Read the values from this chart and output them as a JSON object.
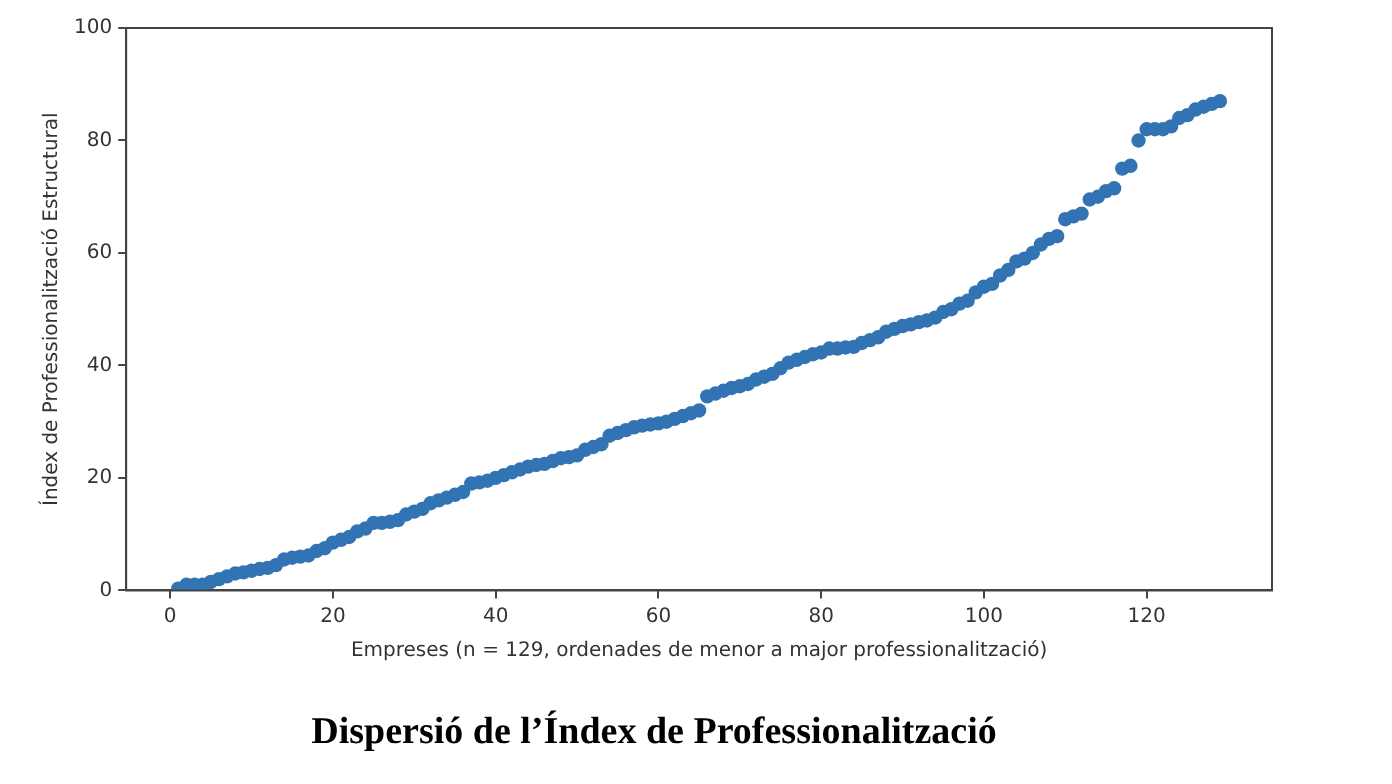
{
  "chart_data": {
    "type": "scatter",
    "title": "Dispersió de l’Índex de Professionalització",
    "xlabel": "Empreses (n = 129, ordenades de menor a major professionalització)",
    "ylabel": "Índex de Professionalització Estructural",
    "x": [
      1,
      2,
      3,
      4,
      5,
      6,
      7,
      8,
      9,
      10,
      11,
      12,
      13,
      14,
      15,
      16,
      17,
      18,
      19,
      20,
      21,
      22,
      23,
      24,
      25,
      26,
      27,
      28,
      29,
      30,
      31,
      32,
      33,
      34,
      35,
      36,
      37,
      38,
      39,
      40,
      41,
      42,
      43,
      44,
      45,
      46,
      47,
      48,
      49,
      50,
      51,
      52,
      53,
      54,
      55,
      56,
      57,
      58,
      59,
      60,
      61,
      62,
      63,
      64,
      65,
      66,
      67,
      68,
      69,
      70,
      71,
      72,
      73,
      74,
      75,
      76,
      77,
      78,
      79,
      80,
      81,
      82,
      83,
      84,
      85,
      86,
      87,
      88,
      89,
      90,
      91,
      92,
      93,
      94,
      95,
      96,
      97,
      98,
      99,
      100,
      101,
      102,
      103,
      104,
      105,
      106,
      107,
      108,
      109,
      110,
      111,
      112,
      113,
      114,
      115,
      116,
      117,
      118,
      119,
      120,
      121,
      122,
      123,
      124,
      125,
      126,
      127,
      128,
      129
    ],
    "series": [
      {
        "color": "#3274b3",
        "values": [
          0.3,
          1,
          1,
          1,
          1.5,
          2,
          2.5,
          3,
          3.2,
          3.5,
          3.8,
          4,
          4.5,
          5.5,
          5.8,
          6,
          6.2,
          7,
          7.5,
          8.5,
          9,
          9.5,
          10.5,
          11,
          12,
          12,
          12.2,
          12.5,
          13.5,
          14,
          14.5,
          15.5,
          16,
          16.5,
          17,
          17.5,
          19,
          19.2,
          19.5,
          20,
          20.5,
          21,
          21.5,
          22,
          22.3,
          22.5,
          23,
          23.5,
          23.7,
          24,
          25,
          25.5,
          26,
          27.5,
          28,
          28.5,
          29,
          29.3,
          29.5,
          29.7,
          30,
          30.5,
          31,
          31.5,
          32,
          34.5,
          35,
          35.5,
          36,
          36.3,
          36.7,
          37.5,
          38,
          38.5,
          39.5,
          40.5,
          41,
          41.5,
          42,
          42.3,
          43,
          43,
          43.2,
          43.3,
          44,
          44.5,
          45,
          46,
          46.5,
          47,
          47.3,
          47.7,
          48,
          48.5,
          49.5,
          50,
          51,
          51.5,
          53,
          54,
          54.5,
          56,
          57,
          58.5,
          59,
          60,
          61.5,
          62.5,
          63,
          66,
          66.5,
          67,
          69.5,
          70,
          71,
          71.5,
          75,
          75.5,
          80,
          82,
          82,
          82,
          82.5,
          84,
          84.5,
          85.5,
          86,
          86.5,
          87
        ]
      }
    ],
    "xlim": [
      -5.4,
      135.4
    ],
    "xticks": [
      0,
      20,
      40,
      60,
      80,
      100,
      120
    ],
    "ylim": [
      0,
      100
    ],
    "yticks": [
      0,
      20,
      40,
      60,
      80,
      100
    ],
    "grid": false,
    "legend": false,
    "marker": "circle"
  }
}
